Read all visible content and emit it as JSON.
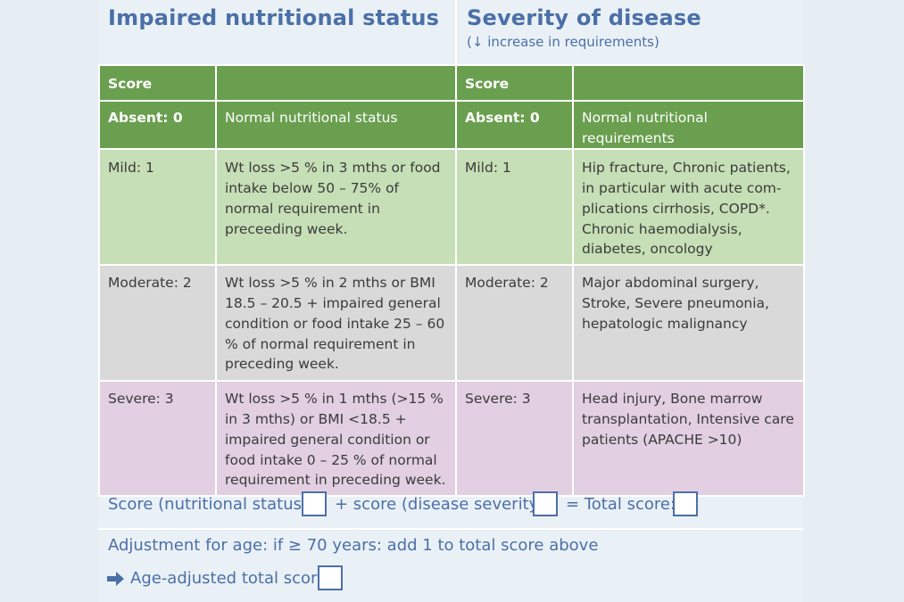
{
  "header": {
    "left_title": "Impaired nutritional status",
    "right_title": "Severity of disease",
    "right_subtitle": "(↓ increase in requirements)"
  },
  "table": {
    "head": [
      "Score",
      "",
      "Score",
      ""
    ],
    "rows": [
      {
        "left_label": "Absent: 0",
        "left_text": "Normal nutritional status",
        "right_label": "Absent: 0",
        "right_text": "Normal nutritional requirements"
      },
      {
        "left_label": "Mild: 1",
        "left_text": "Wt loss >5 % in 3 mths or food intake below 50 – 75% of normal requirement in preceeding week.",
        "right_label": "Mild: 1",
        "right_text": "Hip fracture, Chronic patients, in particular with acute com-plications cirrhosis, COPD*. Chronic haemodialysis, diabetes, oncology"
      },
      {
        "left_label": "Moderate: 2",
        "left_text": "Wt loss >5 % in 2 mths or BMI 18.5 – 20.5 + impaired general condition or food intake 25 – 60 % of normal requirement in preceding week.",
        "right_label": "Moderate: 2",
        "right_text": "Major abdominal surgery, Stroke, Severe pneumonia, hepatologic malignancy"
      },
      {
        "left_label": "Severe: 3",
        "left_text": "Wt loss >5 % in 1 mths (>15 % in 3 mths) or BMI <18.5 + impaired general condition or food intake 0 – 25 % of normal requirement in preceding week.",
        "right_label": "Severe: 3",
        "right_text": "Head injury, Bone marrow transplantation, Intensive care patients (APACHE >10)"
      }
    ]
  },
  "score_line": {
    "part1": "Score (nutritional status)",
    "part2": "+ score (disease severity)",
    "part3": "= Total score:"
  },
  "adjustment": "Adjustment for age: if ≥ 70 years: add 1 to total score above",
  "age_total": "Age-adjusted total score",
  "colors": {
    "green_header": "#6a9f4f",
    "mild_green": "#c6dfb6",
    "moderate_grey": "#d9d9d9",
    "severe_purple": "#e2cfe2",
    "title_blue": "#4b6fa8",
    "background": "#eaf1f6"
  },
  "icons": {
    "age_arrow": "arrow-right-icon"
  }
}
